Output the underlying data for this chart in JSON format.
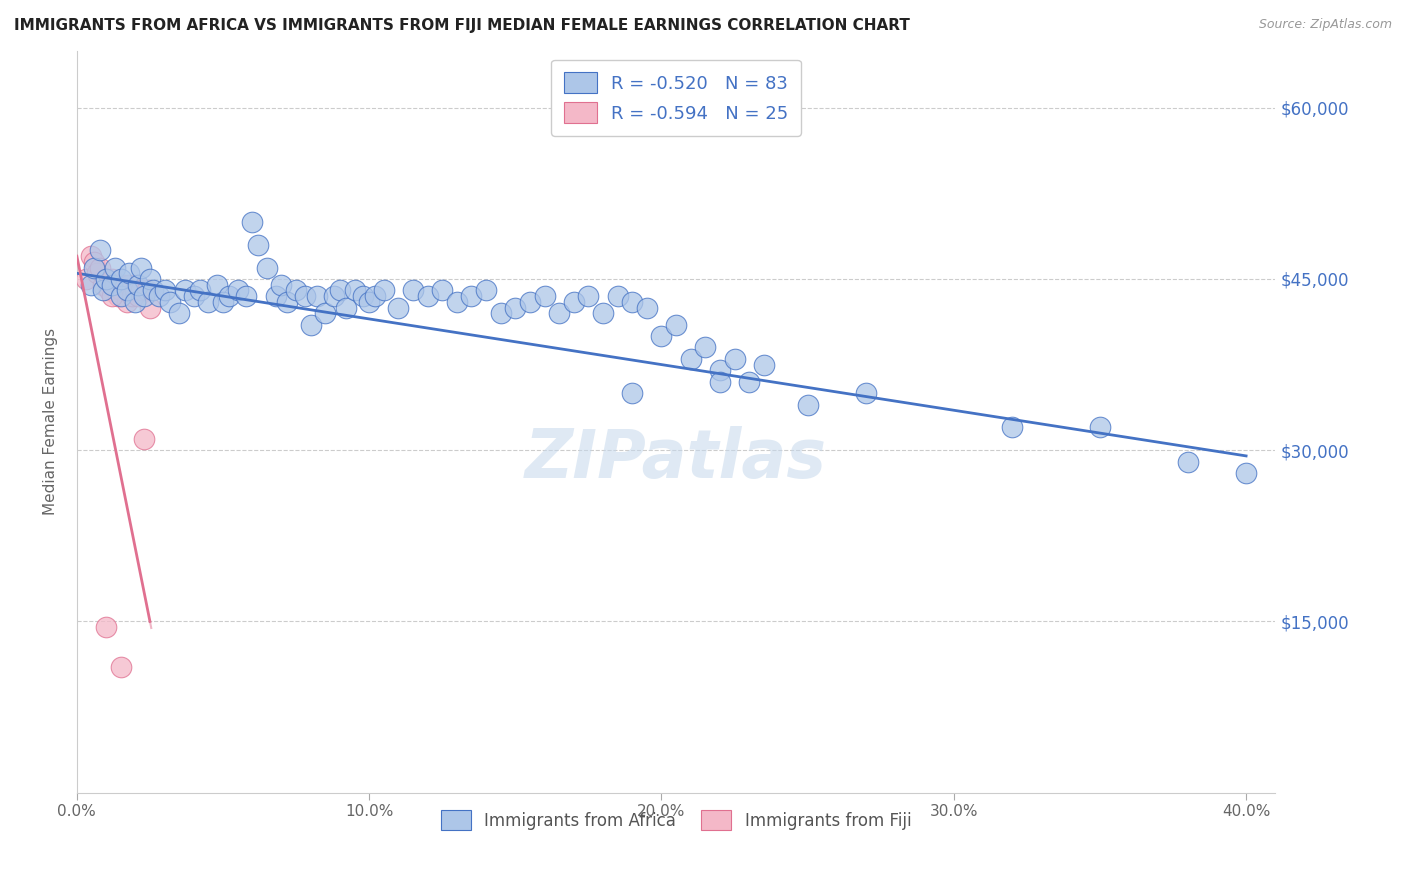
{
  "title": "IMMIGRANTS FROM AFRICA VS IMMIGRANTS FROM FIJI MEDIAN FEMALE EARNINGS CORRELATION CHART",
  "source": "Source: ZipAtlas.com",
  "ylabel": "Median Female Earnings",
  "legend_bottom": [
    "Immigrants from Africa",
    "Immigrants from Fiji"
  ],
  "R_africa": -0.52,
  "N_africa": 83,
  "R_fiji": -0.594,
  "N_fiji": 25,
  "africa_color": "#adc6e8",
  "fiji_color": "#f4b8c8",
  "africa_line_color": "#4472c4",
  "fiji_line_color": "#e07090",
  "watermark": "ZIPatlas",
  "ytick_labels": [
    "$15,000",
    "$30,000",
    "$45,000",
    "$60,000"
  ],
  "ytick_values": [
    15000,
    30000,
    45000,
    60000
  ],
  "xtick_labels": [
    "0.0%",
    "10.0%",
    "20.0%",
    "30.0%",
    "40.0%"
  ],
  "xtick_values": [
    0.0,
    0.1,
    0.2,
    0.3,
    0.4
  ],
  "xlim": [
    0.0,
    0.41
  ],
  "ylim": [
    0,
    65000
  ],
  "africa_x": [
    0.005,
    0.006,
    0.008,
    0.009,
    0.01,
    0.012,
    0.013,
    0.015,
    0.015,
    0.017,
    0.018,
    0.02,
    0.021,
    0.022,
    0.023,
    0.025,
    0.026,
    0.028,
    0.03,
    0.032,
    0.035,
    0.037,
    0.04,
    0.042,
    0.045,
    0.048,
    0.05,
    0.052,
    0.055,
    0.058,
    0.06,
    0.062,
    0.065,
    0.068,
    0.07,
    0.072,
    0.075,
    0.078,
    0.08,
    0.082,
    0.085,
    0.088,
    0.09,
    0.092,
    0.095,
    0.098,
    0.1,
    0.102,
    0.105,
    0.11,
    0.115,
    0.12,
    0.125,
    0.13,
    0.135,
    0.14,
    0.145,
    0.15,
    0.155,
    0.16,
    0.165,
    0.17,
    0.175,
    0.18,
    0.185,
    0.19,
    0.195,
    0.2,
    0.205,
    0.21,
    0.215,
    0.22,
    0.225,
    0.23,
    0.235,
    0.19,
    0.22,
    0.25,
    0.27,
    0.32,
    0.35,
    0.38,
    0.4
  ],
  "africa_y": [
    44500,
    46000,
    47500,
    44000,
    45000,
    44500,
    46000,
    43500,
    45000,
    44000,
    45500,
    43000,
    44500,
    46000,
    43500,
    45000,
    44000,
    43500,
    44000,
    43000,
    42000,
    44000,
    43500,
    44000,
    43000,
    44500,
    43000,
    43500,
    44000,
    43500,
    50000,
    48000,
    46000,
    43500,
    44500,
    43000,
    44000,
    43500,
    41000,
    43500,
    42000,
    43500,
    44000,
    42500,
    44000,
    43500,
    43000,
    43500,
    44000,
    42500,
    44000,
    43500,
    44000,
    43000,
    43500,
    44000,
    42000,
    42500,
    43000,
    43500,
    42000,
    43000,
    43500,
    42000,
    43500,
    43000,
    42500,
    40000,
    41000,
    38000,
    39000,
    37000,
    38000,
    36000,
    37500,
    35000,
    36000,
    34000,
    35000,
    32000,
    32000,
    29000,
    28000
  ],
  "fiji_x": [
    0.003,
    0.005,
    0.006,
    0.007,
    0.008,
    0.009,
    0.01,
    0.011,
    0.012,
    0.013,
    0.014,
    0.015,
    0.016,
    0.017,
    0.018,
    0.019,
    0.02,
    0.021,
    0.022,
    0.023,
    0.024,
    0.025,
    0.01,
    0.015,
    0.012
  ],
  "fiji_y": [
    45000,
    47000,
    46500,
    45500,
    46000,
    44500,
    45000,
    44000,
    45000,
    44500,
    43500,
    44000,
    44500,
    43000,
    44500,
    43500,
    44000,
    43500,
    44000,
    31000,
    44000,
    42500,
    14500,
    11000,
    43500
  ],
  "fiji_line_x0": 0.0,
  "fiji_line_y0": 47000,
  "fiji_line_x1": 0.025,
  "fiji_line_y1": 15000,
  "africa_line_x0": 0.0,
  "africa_line_y0": 45500,
  "africa_line_x1": 0.4,
  "africa_line_y1": 29500
}
